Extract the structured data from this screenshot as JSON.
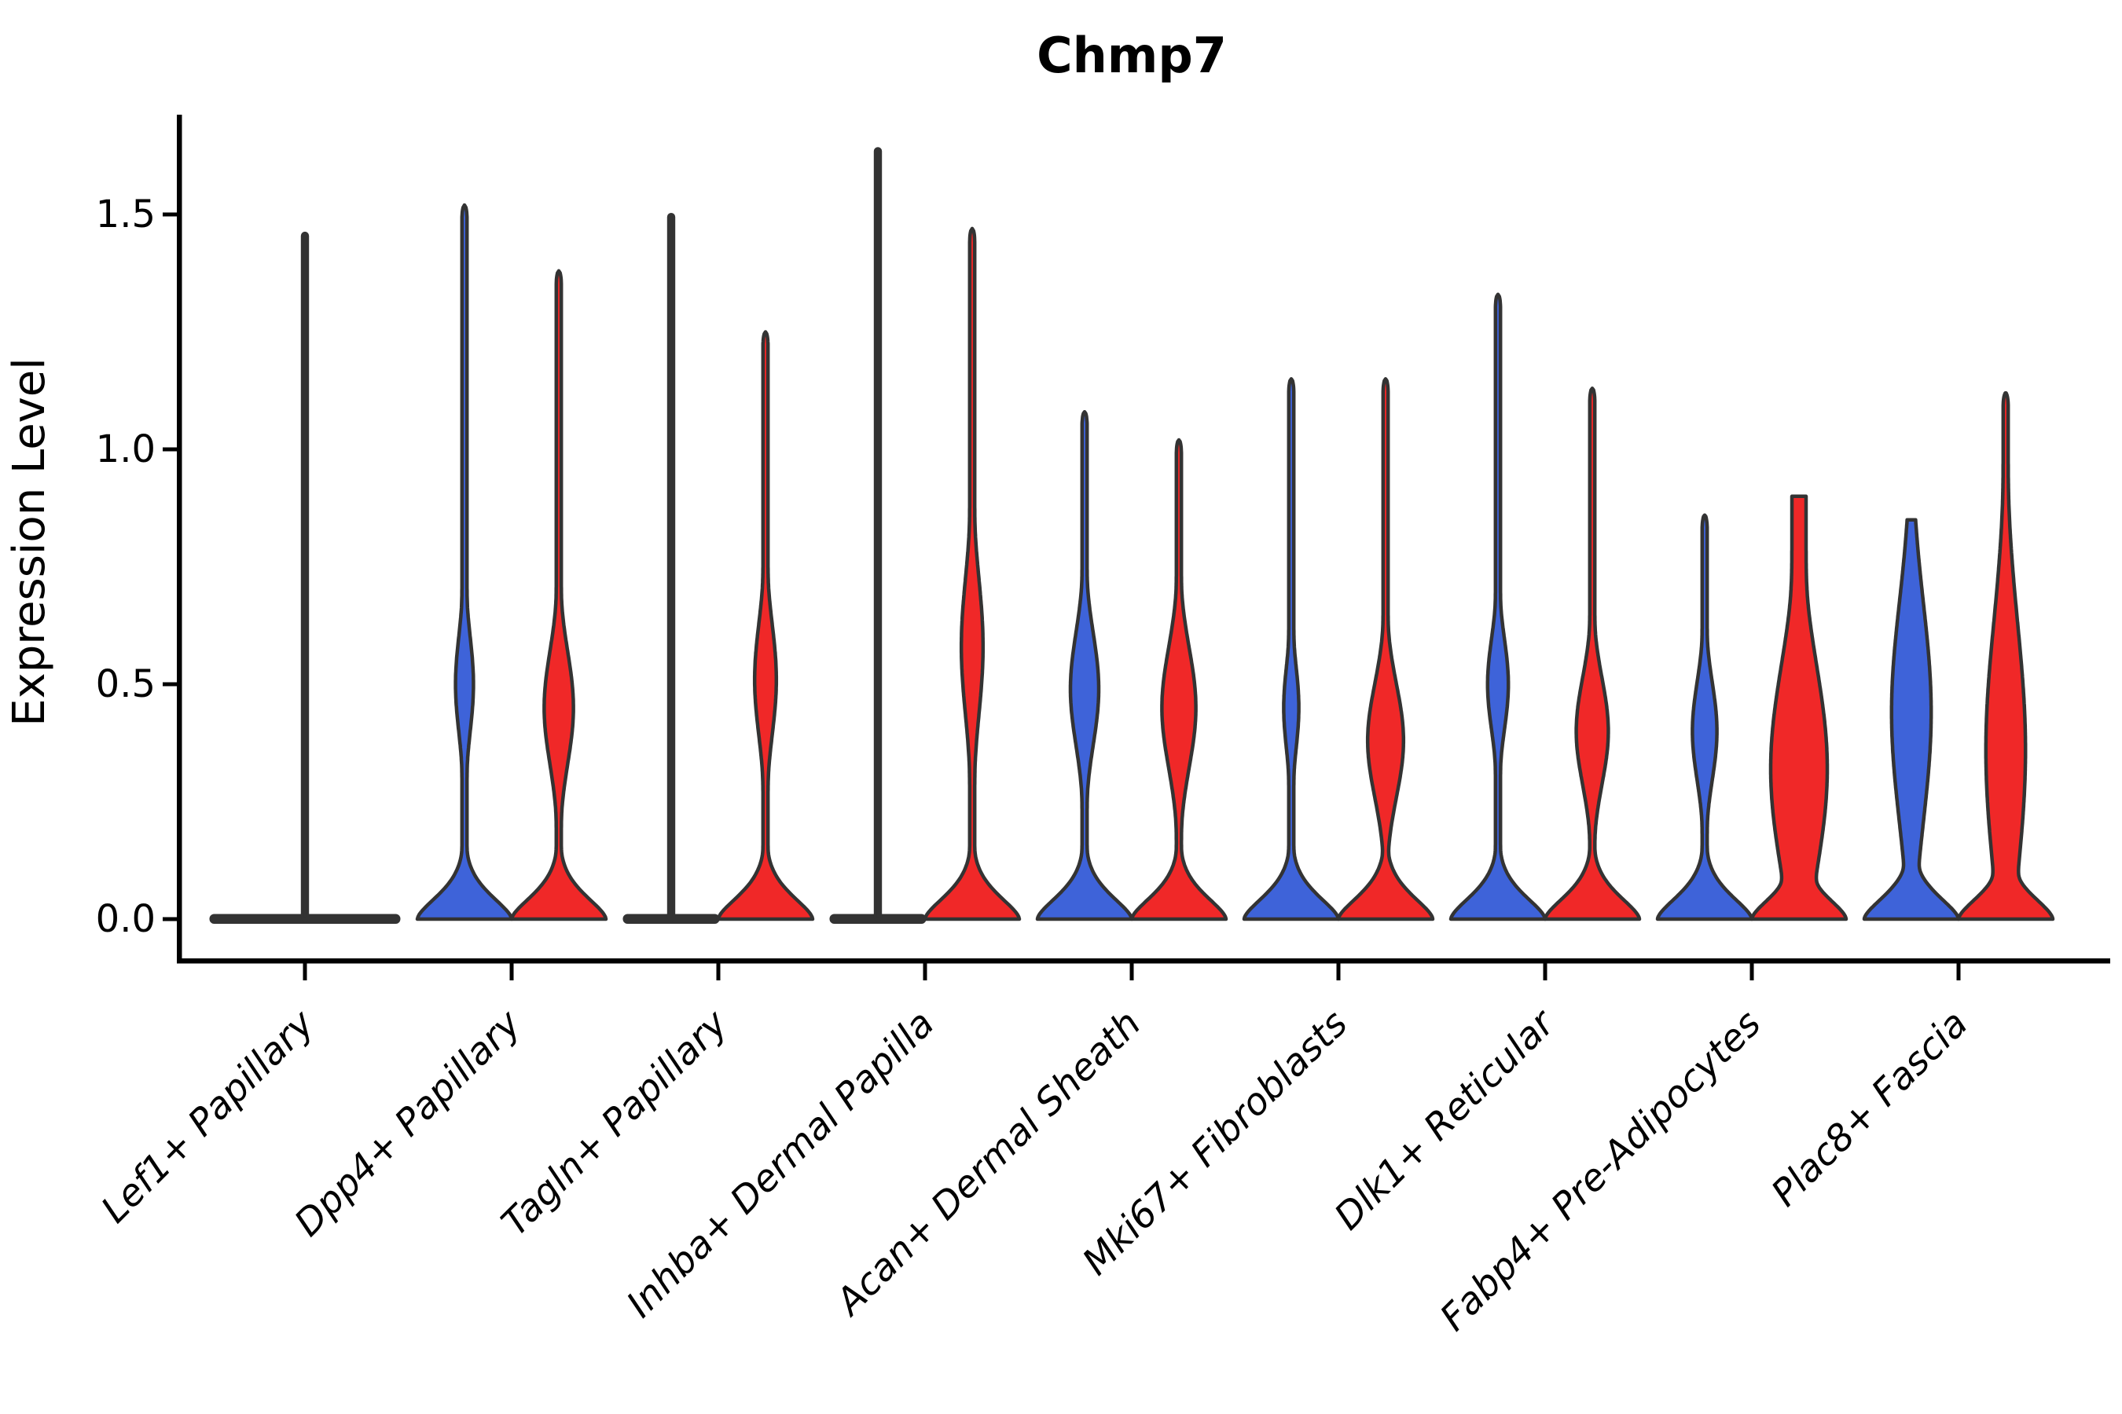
{
  "title": "Chmp7",
  "chart_data": {
    "type": "violin",
    "title": "Chmp7",
    "xlabel": "",
    "ylabel": "Expression Level",
    "ytick_labels": [
      "0.0",
      "0.5",
      "1.0",
      "1.5"
    ],
    "ytick_values": [
      0.0,
      0.5,
      1.0,
      1.5
    ],
    "ylim": [
      -0.09,
      1.72
    ],
    "grid": false,
    "legend": "none",
    "split_colors": {
      "left": "#3E63D9",
      "right": "#F02828",
      "edge": "#333333",
      "flat": "#333333"
    },
    "categories": [
      "Lef1+ Papillary",
      "Dpp4+ Papillary",
      "Tagln+ Papillary",
      "Inhba+ Dermal Papilla",
      "Acan+ Dermal Sheath",
      "Mki67+ Fibroblasts",
      "Dlk1+ Reticular",
      "Fabp4+ Pre-Adipocytes",
      "Plac8+ Fascia"
    ],
    "groups": [
      {
        "category": "Lef1+ Papillary",
        "violins": [
          {
            "side": "both",
            "style": "flat",
            "max": 1.46,
            "rel_halfwidth": 2.0,
            "color": "#333333"
          }
        ]
      },
      {
        "category": "Dpp4+ Papillary",
        "violins": [
          {
            "side": "left",
            "style": "violin",
            "max": 1.52,
            "color": "#3E63D9",
            "bump": {
              "peak_value": 0.5,
              "spread": 0.15,
              "rel_width": 0.19
            }
          },
          {
            "side": "right",
            "style": "violin",
            "max": 1.38,
            "color": "#F02828",
            "bump": {
              "peak_value": 0.45,
              "spread": 0.17,
              "rel_width": 0.31
            }
          }
        ]
      },
      {
        "category": "Tagln+ Papillary",
        "violins": [
          {
            "side": "left",
            "style": "flat",
            "max": 1.5,
            "rel_halfwidth": 1.0,
            "color": "#333333"
          },
          {
            "side": "right",
            "style": "violin",
            "max": 1.25,
            "color": "#F02828",
            "bump": {
              "peak_value": 0.51,
              "spread": 0.17,
              "rel_width": 0.23
            }
          }
        ]
      },
      {
        "category": "Inhba+ Dermal Papilla",
        "violins": [
          {
            "side": "left",
            "style": "flat",
            "max": 1.64,
            "rel_halfwidth": 1.0,
            "color": "#333333"
          },
          {
            "side": "right",
            "style": "violin",
            "max": 1.47,
            "color": "#F02828",
            "bump": {
              "peak_value": 0.58,
              "spread": 0.21,
              "rel_width": 0.23
            }
          }
        ]
      },
      {
        "category": "Acan+ Dermal Sheath",
        "violins": [
          {
            "side": "left",
            "style": "violin",
            "max": 1.08,
            "color": "#3E63D9",
            "bump": {
              "peak_value": 0.49,
              "spread": 0.17,
              "rel_width": 0.3
            }
          },
          {
            "side": "right",
            "style": "violin",
            "max": 1.02,
            "color": "#F02828",
            "bump": {
              "peak_value": 0.45,
              "spread": 0.18,
              "rel_width": 0.36
            }
          }
        ]
      },
      {
        "category": "Mki67+ Fibroblasts",
        "violins": [
          {
            "side": "left",
            "style": "violin",
            "max": 1.15,
            "color": "#3E63D9",
            "bump": {
              "peak_value": 0.45,
              "spread": 0.13,
              "rel_width": 0.16
            }
          },
          {
            "side": "right",
            "style": "violin",
            "max": 1.15,
            "color": "#F02828",
            "bump": {
              "peak_value": 0.38,
              "spread": 0.17,
              "rel_width": 0.38
            }
          }
        ]
      },
      {
        "category": "Dlk1+ Reticular",
        "violins": [
          {
            "side": "left",
            "style": "violin",
            "max": 1.33,
            "color": "#3E63D9",
            "bump": {
              "peak_value": 0.5,
              "spread": 0.14,
              "rel_width": 0.22
            }
          },
          {
            "side": "right",
            "style": "violin",
            "max": 1.13,
            "color": "#F02828",
            "bump": {
              "peak_value": 0.4,
              "spread": 0.16,
              "rel_width": 0.34
            }
          }
        ]
      },
      {
        "category": "Fabp4+ Pre-Adipocytes",
        "violins": [
          {
            "side": "left",
            "style": "violin",
            "max": 0.86,
            "color": "#3E63D9",
            "bump": {
              "peak_value": 0.4,
              "spread": 0.15,
              "rel_width": 0.26
            }
          },
          {
            "side": "right",
            "style": "violin",
            "max": 0.9,
            "color": "#F02828",
            "flat_top": true,
            "cap_rel_width": 0.15,
            "bump": {
              "peak_value": 0.32,
              "spread": 0.32,
              "rel_width": 0.6
            }
          }
        ]
      },
      {
        "category": "Plac8+ Fascia",
        "violins": [
          {
            "side": "left",
            "style": "violin",
            "max": 0.85,
            "color": "#3E63D9",
            "bump": {
              "peak_value": 0.44,
              "spread": 0.33,
              "rel_width": 0.42
            }
          },
          {
            "side": "right",
            "style": "violin",
            "max": 1.12,
            "color": "#F02828",
            "bump": {
              "peak_value": 0.36,
              "spread": 0.38,
              "rel_width": 0.42
            }
          }
        ]
      }
    ]
  }
}
